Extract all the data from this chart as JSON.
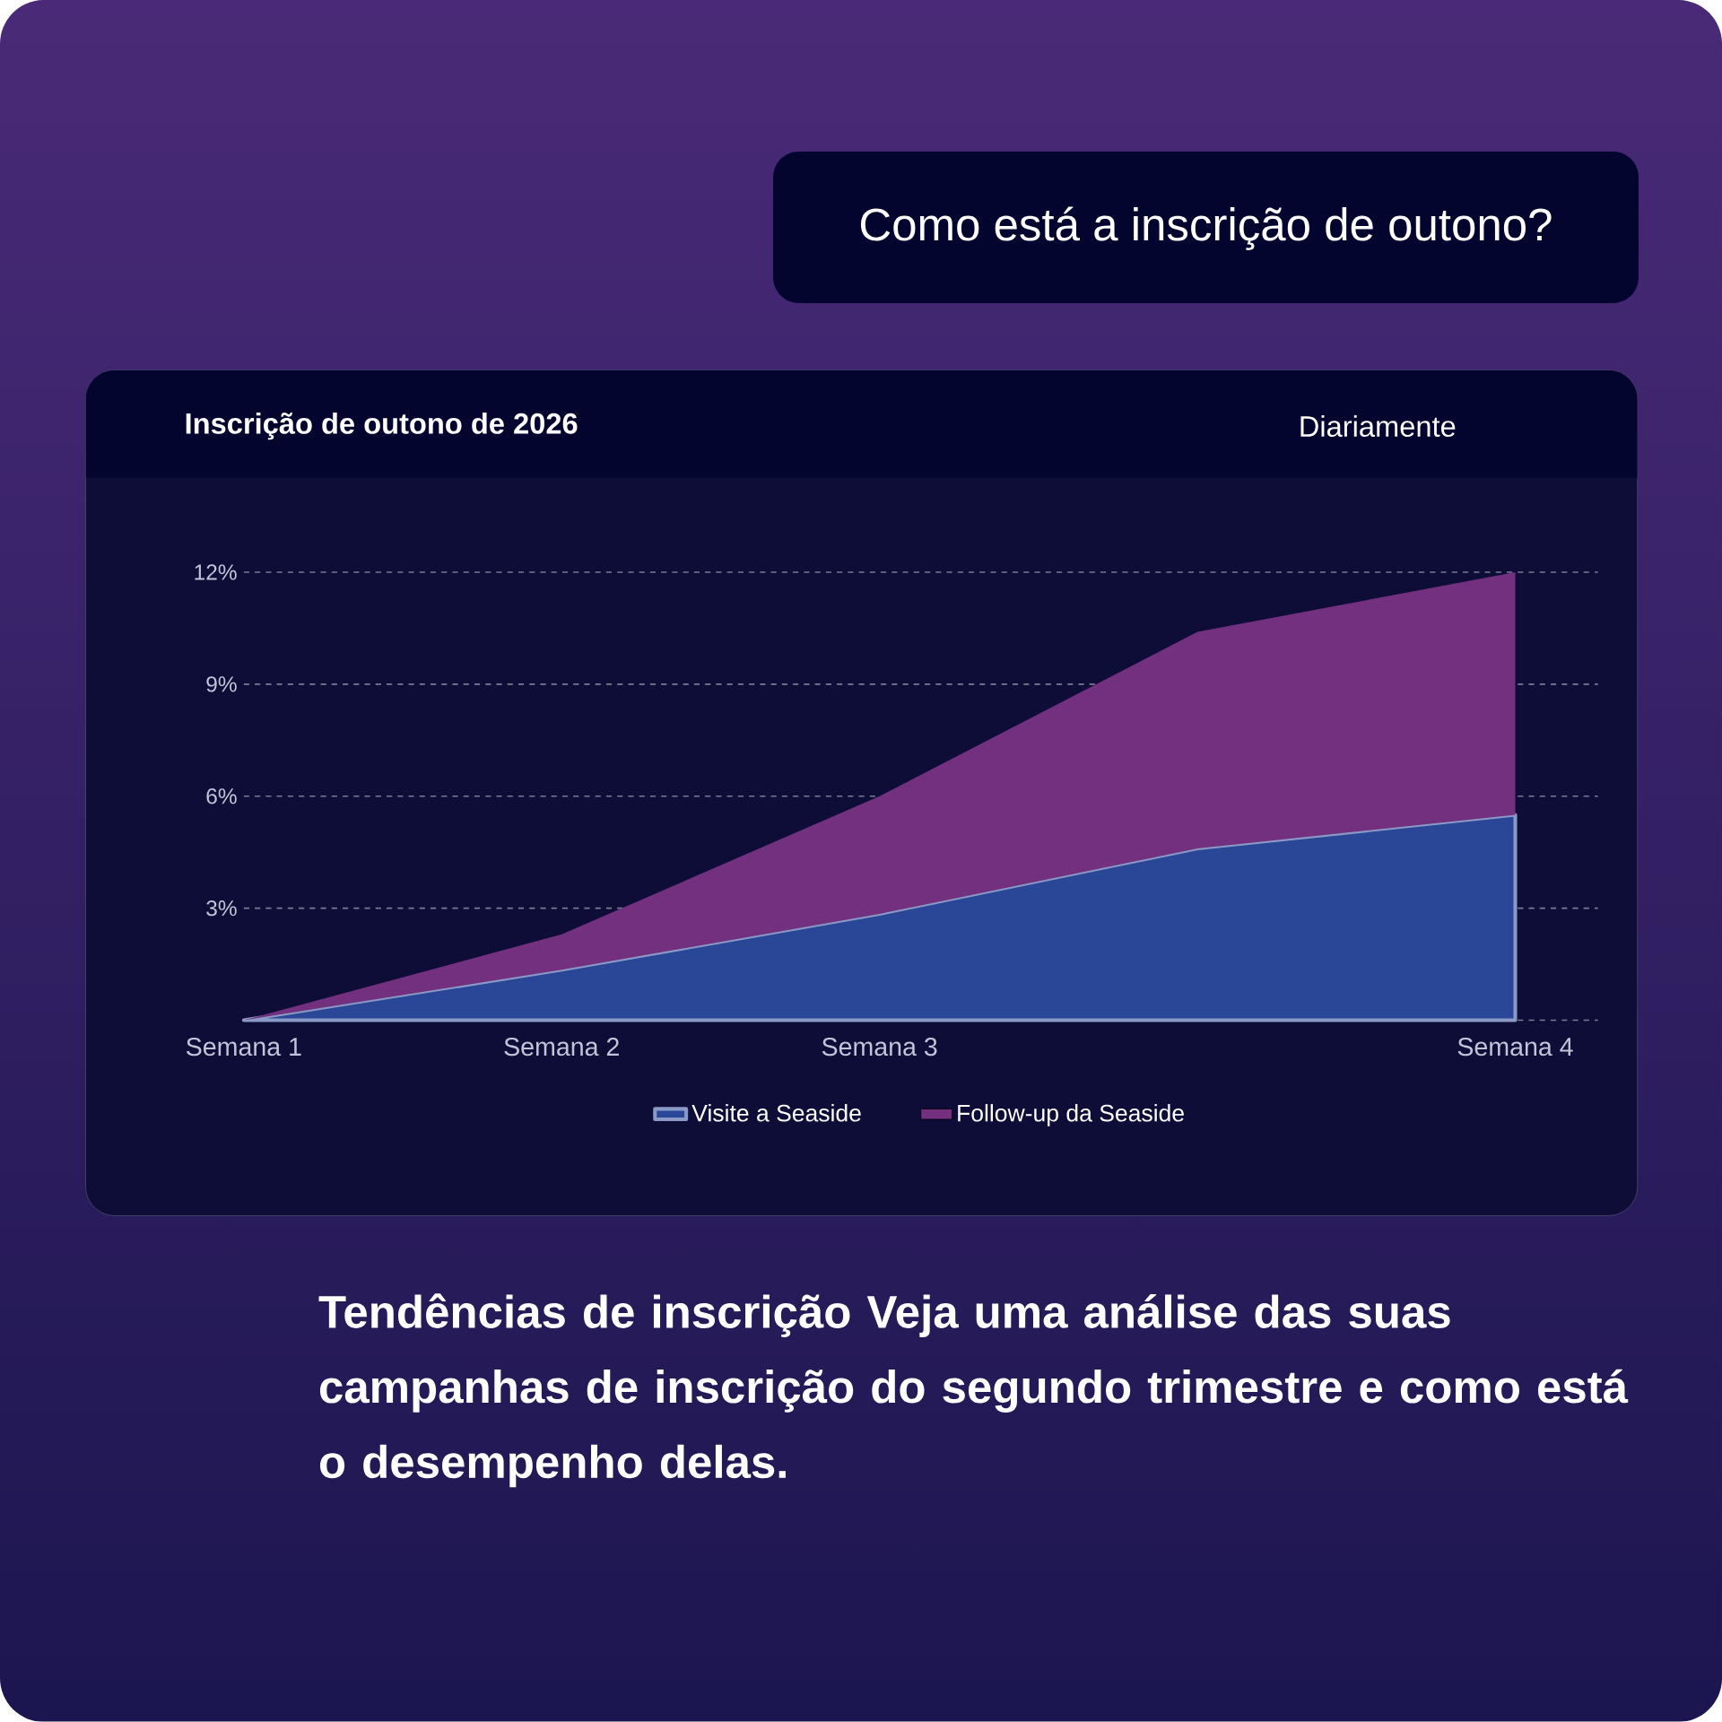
{
  "chart_data": {
    "type": "area",
    "title": "Inscrição de outono de 2026",
    "annotations": [
      "Como está a inscrição de outono?",
      "Diariamente",
      "**Tendências de inscrição Veja uma análise das suas campanhas de inscrição do segundo trimestre e como está o desempenho delas.**"
    ],
    "categories": [
      "Semana 1",
      "Semana 2",
      "Semana 3",
      null,
      "Semana 4"
    ],
    "ylim": [
      0,
      12
    ],
    "yticks": [
      {
        "value": 0,
        "label": null
      },
      {
        "value": 3,
        "label": "3%"
      },
      {
        "value": 6,
        "label": "6%"
      },
      {
        "value": 9,
        "label": "9%"
      },
      {
        "value": 12,
        "label": "12%"
      }
    ],
    "grid": "y",
    "legend": "bottom",
    "stacked": true,
    "series": [
      {
        "name": "Visite a Seaside",
        "color": "#2a4696",
        "values": [
          0,
          1.35,
          2.85,
          4.6,
          5.5
        ]
      },
      {
        "name": "Follow-up da Seaside",
        "color": "#72307f",
        "values": [
          0,
          0.95,
          3.15,
          5.8,
          6.5
        ]
      }
    ]
  }
}
